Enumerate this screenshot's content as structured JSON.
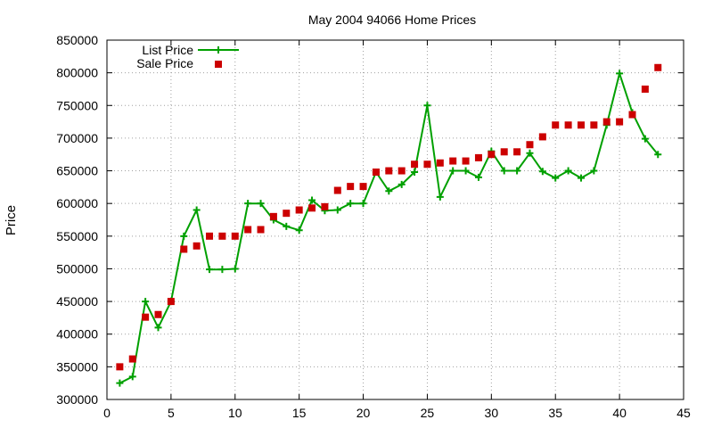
{
  "chart_data": {
    "type": "line",
    "title": "May 2004 94066 Home Prices",
    "xlabel": "",
    "ylabel": "Price",
    "xlim": [
      0,
      45
    ],
    "ylim": [
      300000,
      850000
    ],
    "xticks": [
      0,
      5,
      10,
      15,
      20,
      25,
      30,
      35,
      40,
      45
    ],
    "yticks": [
      300000,
      350000,
      400000,
      450000,
      500000,
      550000,
      600000,
      650000,
      700000,
      750000,
      800000,
      850000
    ],
    "grid": true,
    "legend_position": "top-left",
    "series": [
      {
        "name": "List Price",
        "style": "line+cross",
        "color": "#00a000",
        "x": [
          1,
          2,
          3,
          4,
          5,
          6,
          7,
          8,
          9,
          10,
          11,
          12,
          13,
          14,
          15,
          16,
          17,
          18,
          19,
          20,
          21,
          22,
          23,
          24,
          25,
          26,
          27,
          28,
          29,
          30,
          31,
          32,
          33,
          34,
          35,
          36,
          37,
          38,
          39,
          40,
          41,
          42,
          43
        ],
        "y": [
          325000,
          335000,
          450000,
          410000,
          450000,
          550000,
          590000,
          499000,
          499000,
          500000,
          600000,
          600000,
          575000,
          565000,
          559000,
          605000,
          589000,
          590000,
          600000,
          600000,
          648000,
          619000,
          629000,
          648000,
          750000,
          610000,
          650000,
          650000,
          640000,
          680000,
          650000,
          650000,
          677000,
          649000,
          639000,
          650000,
          639000,
          650000,
          720000,
          799000,
          739000,
          699000,
          675000
        ]
      },
      {
        "name": "Sale Price",
        "style": "square",
        "color": "#cc0000",
        "x": [
          1,
          2,
          3,
          4,
          5,
          6,
          7,
          8,
          9,
          10,
          11,
          12,
          13,
          14,
          15,
          16,
          17,
          18,
          19,
          20,
          21,
          22,
          23,
          24,
          25,
          26,
          27,
          28,
          29,
          30,
          31,
          32,
          33,
          34,
          35,
          36,
          37,
          38,
          39,
          40,
          41,
          42,
          43
        ],
        "y": [
          350000,
          362000,
          426000,
          430000,
          450000,
          530000,
          535000,
          550000,
          550000,
          550000,
          560000,
          560000,
          580000,
          585000,
          590000,
          593000,
          595000,
          620000,
          626000,
          626000,
          648000,
          650000,
          650000,
          660000,
          660000,
          662000,
          665000,
          665000,
          670000,
          675000,
          679000,
          679000,
          690000,
          702000,
          720000,
          720000,
          720000,
          720000,
          725000,
          725000,
          736000,
          775000,
          808000
        ]
      }
    ]
  }
}
